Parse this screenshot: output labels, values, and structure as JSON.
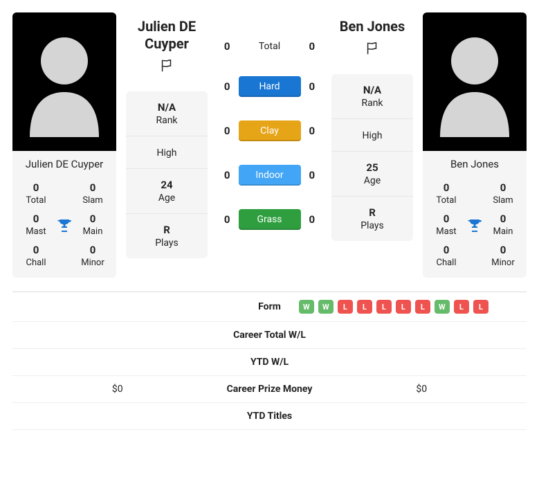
{
  "colors": {
    "hard": "#1976d2",
    "clay": "#e6a417",
    "indoor": "#42a5f5",
    "grass": "#2e9e3f",
    "win_badge": "#66bb6a",
    "loss_badge": "#ef5350",
    "trophy": "#1976d2",
    "silhouette": "#d5d5d5"
  },
  "players": {
    "p1": {
      "name": "Julien DE Cuyper",
      "rank": "N/A",
      "high": "",
      "age": "24",
      "plays": "R",
      "card_stats": {
        "total": "0",
        "slam": "0",
        "mast": "0",
        "main": "0",
        "chall": "0",
        "minor": "0"
      }
    },
    "p2": {
      "name": "Ben Jones",
      "rank": "N/A",
      "high": "",
      "age": "25",
      "plays": "R",
      "card_stats": {
        "total": "0",
        "slam": "0",
        "mast": "0",
        "main": "0",
        "chall": "0",
        "minor": "0"
      }
    }
  },
  "h2h": {
    "total": {
      "p1": "0",
      "p2": "0",
      "label": "Total"
    },
    "hard": {
      "p1": "0",
      "p2": "0",
      "label": "Hard"
    },
    "clay": {
      "p1": "0",
      "p2": "0",
      "label": "Clay"
    },
    "indoor": {
      "p1": "0",
      "p2": "0",
      "label": "Indoor"
    },
    "grass": {
      "p1": "0",
      "p2": "0",
      "label": "Grass"
    }
  },
  "labels": {
    "rank": "Rank",
    "high": "High",
    "age": "Age",
    "plays": "Plays",
    "total": "Total",
    "slam": "Slam",
    "mast": "Mast",
    "main": "Main",
    "chall": "Chall",
    "minor": "Minor"
  },
  "comparison": {
    "form": {
      "label": "Form"
    },
    "career_wl": {
      "label": "Career Total W/L"
    },
    "ytd_wl": {
      "label": "YTD W/L"
    },
    "prize": {
      "label": "Career Prize Money",
      "p1": "$0",
      "p2": "$0"
    },
    "ytd_titles": {
      "label": "YTD Titles"
    }
  },
  "form_p2": [
    "W",
    "W",
    "L",
    "L",
    "L",
    "L",
    "L",
    "W",
    "L",
    "L"
  ]
}
